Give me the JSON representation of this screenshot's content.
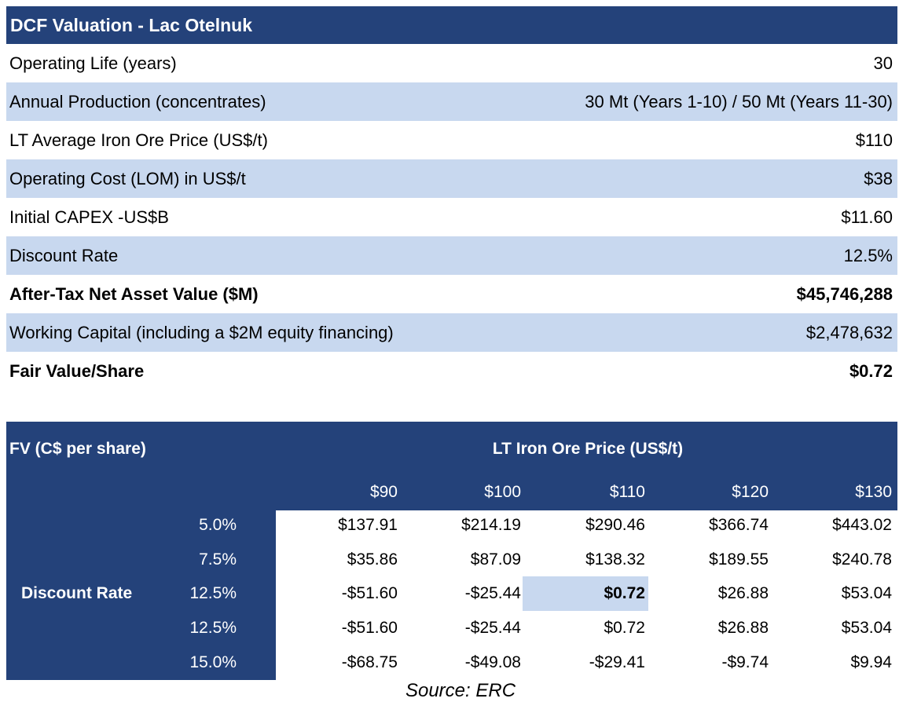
{
  "dcf": {
    "title": "DCF Valuation - Lac Otelnuk",
    "rows": [
      {
        "label": "Operating Life (years)",
        "value": "30"
      },
      {
        "label": "Annual Production (concentrates)",
        "value": "30 Mt (Years 1-10) / 50 Mt (Years 11-30)"
      },
      {
        "label": "LT Average Iron Ore Price (US$/t)",
        "value": "$110"
      },
      {
        "label": "Operating Cost (LOM) in US$/t",
        "value": "$38"
      },
      {
        "label": "Initial CAPEX -US$B",
        "value": "$11.60"
      },
      {
        "label": "Discount Rate",
        "value": "12.5%"
      },
      {
        "label": "After-Tax Net Asset Value ($M)",
        "value": "$45,746,288"
      },
      {
        "label": "Working Capital (including a $2M equity financing)",
        "value": "$2,478,632"
      },
      {
        "label": "Fair Value/Share",
        "value": "$0.72"
      }
    ]
  },
  "sensitivity": {
    "corner_label": "FV (C$ per share)",
    "column_group_label": "LT Iron Ore Price (US$/t)",
    "row_group_label": "Discount Rate",
    "price_headers": [
      "$90",
      "$100",
      "$110",
      "$120",
      "$130"
    ],
    "rows": [
      {
        "rate": "5.0%",
        "values": [
          "$137.91",
          "$214.19",
          "$290.46",
          "$366.74",
          "$443.02"
        ]
      },
      {
        "rate": "7.5%",
        "values": [
          "$35.86",
          "$87.09",
          "$138.32",
          "$189.55",
          "$240.78"
        ]
      },
      {
        "rate": "12.5%",
        "values": [
          "-$51.60",
          "-$25.44",
          "$0.72",
          "$26.88",
          "$53.04"
        ]
      },
      {
        "rate": "12.5%",
        "values": [
          "-$51.60",
          "-$25.44",
          "$0.72",
          "$26.88",
          "$53.04"
        ]
      },
      {
        "rate": "15.0%",
        "values": [
          "-$68.75",
          "-$49.08",
          "-$29.41",
          "-$9.74",
          "$9.94"
        ]
      }
    ]
  },
  "source": "Source: ERC",
  "colors": {
    "header_blue": "#24427a",
    "shade_blue": "#c8d8ef"
  }
}
